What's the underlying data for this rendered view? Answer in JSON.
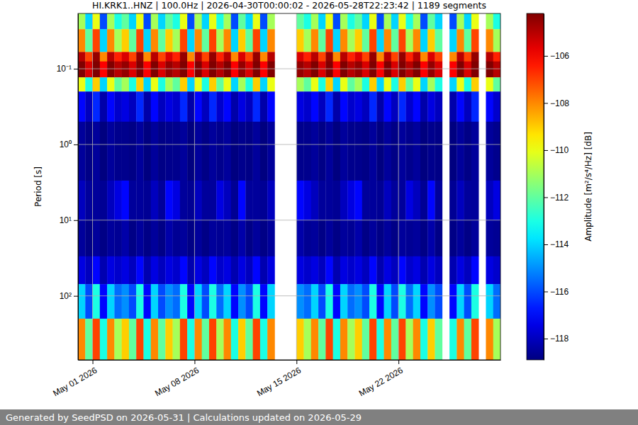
{
  "chart_data": {
    "type": "heatmap",
    "title": "HI.KRK1..HNZ | 100.0Hz | 2026-04-30T00:00:02 - 2026-05-28T22:23:42 | 1189 segments",
    "ylabel": "Period [s]",
    "footer": "Generated by SeedPSD on 2026-05-31 | Calculations updated on 2026-05-29",
    "log": "y",
    "grid": true,
    "xlim": [
      "2026-04-30T00:00",
      "2026-05-29T00:00"
    ],
    "xticks": [
      {
        "value": "2026-05-01T00:00",
        "label": "May 01 2026"
      },
      {
        "value": "2026-05-08T00:00",
        "label": "May 08 2026"
      },
      {
        "value": "2026-05-15T00:00",
        "label": "May 15 2026"
      },
      {
        "value": "2026-05-22T00:00",
        "label": "May 22 2026"
      }
    ],
    "ylim": [
      0.0186,
      700
    ],
    "yticks": [
      {
        "value": 0.1,
        "label": "10⁻¹"
      },
      {
        "value": 1,
        "label": "10⁰"
      },
      {
        "value": 10,
        "label": "10¹"
      },
      {
        "value": 100,
        "label": "10²"
      }
    ],
    "y_bins": [
      0.0186,
      0.03,
      0.06,
      0.08,
      0.13,
      0.2,
      0.5,
      3,
      10,
      30,
      70,
      200,
      700
    ],
    "x": [
      "2026-04-30T00:00",
      "2026-04-30T12:00",
      "2026-05-01T00:00",
      "2026-05-01T12:00",
      "2026-05-02T00:00",
      "2026-05-02T12:00",
      "2026-05-03T00:00",
      "2026-05-03T12:00",
      "2026-05-04T00:00",
      "2026-05-04T12:00",
      "2026-05-05T00:00",
      "2026-05-05T12:00",
      "2026-05-06T00:00",
      "2026-05-06T12:00",
      "2026-05-07T00:00",
      "2026-05-07T12:00",
      "2026-05-08T00:00",
      "2026-05-08T12:00",
      "2026-05-09T00:00",
      "2026-05-09T12:00",
      "2026-05-10T00:00",
      "2026-05-10T12:00",
      "2026-05-11T00:00",
      "2026-05-11T12:00",
      "2026-05-12T00:00",
      "2026-05-12T12:00",
      "2026-05-13T00:00",
      "2026-05-13T12:00",
      "2026-05-14T00:00",
      "2026-05-14T12:00",
      "2026-05-15T00:00",
      "2026-05-15T12:00",
      "2026-05-16T00:00",
      "2026-05-16T12:00",
      "2026-05-17T00:00",
      "2026-05-17T12:00",
      "2026-05-18T00:00",
      "2026-05-18T12:00",
      "2026-05-19T00:00",
      "2026-05-19T12:00",
      "2026-05-20T00:00",
      "2026-05-20T12:00",
      "2026-05-21T00:00",
      "2026-05-21T12:00",
      "2026-05-22T00:00",
      "2026-05-22T12:00",
      "2026-05-23T00:00",
      "2026-05-23T12:00",
      "2026-05-24T00:00",
      "2026-05-24T12:00",
      "2026-05-25T00:00",
      "2026-05-25T12:00",
      "2026-05-26T00:00",
      "2026-05-26T12:00",
      "2026-05-27T00:00",
      "2026-05-27T12:00",
      "2026-05-28T00:00",
      "2026-05-28T12:00"
    ],
    "z": [
      [
        -111,
        -108,
        -105,
        -104,
        -110,
        -117,
        -118.5,
        -118,
        -118.5,
        -117.5,
        -114,
        -108
      ],
      [
        -114,
        -112,
        -107,
        -105.5,
        -113,
        -118,
        -118.8,
        -118.5,
        -118.8,
        -118,
        -116,
        -112
      ],
      [
        -110,
        -107,
        -104.5,
        -104,
        -109,
        -116.5,
        -118.5,
        -118.5,
        -118.5,
        -117,
        -113,
        -107
      ],
      [
        -116,
        -114,
        -108,
        -106,
        -114,
        -118.3,
        -118.9,
        -118.6,
        -118.8,
        -118.2,
        -117,
        -113
      ],
      [
        -111,
        -108,
        -105,
        -104,
        -110,
        -117,
        -118.5,
        -118,
        -118.5,
        -117.5,
        -114,
        -108
      ],
      [
        -113,
        -111,
        -106.5,
        -105,
        -112,
        -117.8,
        -118.7,
        -117.5,
        -118.6,
        -117.8,
        -115.5,
        -111
      ],
      [
        -112,
        -109,
        -105.5,
        -104.5,
        -111,
        -117.5,
        -118.7,
        -117,
        -118.3,
        -117.5,
        -115,
        -109
      ],
      [
        -114,
        -112,
        -107,
        -105.5,
        -113,
        -118,
        -118.8,
        -118.5,
        -118.8,
        -118,
        -116,
        -112
      ],
      [
        -110,
        -107,
        -104.5,
        -104,
        -109,
        -116.5,
        -118.5,
        -118.5,
        -118.5,
        -117,
        -113,
        -107
      ],
      [
        -116,
        -114,
        -108,
        -106,
        -114,
        -118.3,
        -118.9,
        -118.6,
        -118.8,
        -118.2,
        -117,
        -113
      ],
      [
        -111,
        -108,
        -105,
        -104,
        -110,
        -117,
        -118.5,
        -118,
        -118.5,
        -117.5,
        -114,
        -108
      ],
      [
        -114,
        -112,
        -107,
        -105.5,
        -113,
        -118,
        -118.8,
        -118.5,
        -118.8,
        -118,
        -116,
        -112
      ],
      [
        -112,
        -109,
        -105.5,
        -104.5,
        -111,
        -117.5,
        -118.7,
        -117,
        -118.3,
        -117.5,
        -115,
        -109
      ],
      [
        -113,
        -111,
        -106.5,
        -105,
        -112,
        -117.8,
        -118.7,
        -117.5,
        -118.6,
        -117.8,
        -115.5,
        -111
      ],
      [
        -110,
        -107,
        -104.5,
        -104,
        -109,
        -116.5,
        -118.5,
        -118.5,
        -118.5,
        -117,
        -113,
        -107
      ],
      [
        -116,
        -114,
        -108,
        -106,
        -114,
        -118.3,
        -118.9,
        -118.6,
        -118.8,
        -118.2,
        -117,
        -113
      ],
      [
        -111,
        -108,
        -105,
        -104,
        -110,
        -117,
        -118.5,
        -118,
        -118.5,
        -117.5,
        -114,
        -108
      ],
      [
        -114,
        -112,
        -107,
        -105.5,
        -113,
        -118,
        -118.8,
        -118.5,
        -118.8,
        -118,
        -116,
        -112
      ],
      [
        -110,
        -107,
        -104.5,
        -104,
        -109,
        -116.5,
        -118.5,
        -118.5,
        -118.5,
        -117,
        -113,
        -107
      ],
      [
        -113,
        -111,
        -106.5,
        -105,
        -112,
        -117.8,
        -118.7,
        -117.5,
        -118.6,
        -117.8,
        -115.5,
        -111
      ],
      [
        -111,
        -108,
        -105,
        -104,
        -110,
        -117,
        -118.5,
        -118,
        -118.5,
        -117.5,
        -114,
        -108
      ],
      [
        -116,
        -114,
        -108,
        -106,
        -114,
        -118.3,
        -118.9,
        -118.6,
        -118.8,
        -118.2,
        -117,
        -113
      ],
      [
        -112,
        -109,
        -105.5,
        -104.5,
        -111,
        -117.5,
        -118.7,
        -117,
        -118.3,
        -117.5,
        -115,
        -109
      ],
      [
        -114,
        -112,
        -107,
        -105.5,
        -113,
        -118,
        -118.8,
        -118.5,
        -118.8,
        -118,
        -116,
        -112
      ],
      [
        -110,
        -107,
        -104.5,
        -104,
        -109,
        -116.5,
        -118.5,
        -118.5,
        -118.5,
        -117,
        -113,
        -107
      ],
      [
        -116,
        -114,
        -108,
        -106,
        -114,
        -118.3,
        -118.9,
        -118.6,
        -118.8,
        -118.2,
        -117,
        -113
      ],
      [
        -111,
        -108,
        -105,
        -104,
        -110,
        -117,
        -118.5,
        -118,
        -118.5,
        -117.5,
        -114,
        -108
      ],
      null,
      null,
      null,
      [
        -112,
        -109,
        -105.5,
        -104.5,
        -111,
        -117.5,
        -118.7,
        -117,
        -118.3,
        -117.5,
        -115,
        -109
      ],
      [
        -113,
        -111,
        -106.5,
        -105,
        -112,
        -117.8,
        -118.7,
        -117.5,
        -118.6,
        -117.8,
        -115.5,
        -111
      ],
      [
        -111,
        -108,
        -105,
        -104,
        -110,
        -117,
        -118.5,
        -118,
        -118.5,
        -117.5,
        -114,
        -108
      ],
      [
        -114,
        -112,
        -107,
        -105.5,
        -113,
        -118,
        -118.8,
        -118.5,
        -118.8,
        -118,
        -116,
        -112
      ],
      [
        -110,
        -107,
        -104.5,
        -104,
        -109,
        -116.5,
        -118.5,
        -118.5,
        -118.5,
        -117,
        -113,
        -107
      ],
      [
        -116,
        -114,
        -108,
        -106,
        -114,
        -118.3,
        -118.9,
        -118.6,
        -118.8,
        -118.2,
        -117,
        -113
      ],
      [
        -111,
        -108,
        -105,
        -104,
        -110,
        -117,
        -118.5,
        -118,
        -118.5,
        -117.5,
        -114,
        -108
      ],
      [
        -113,
        -111,
        -106.5,
        -105,
        -112,
        -117.8,
        -118.7,
        -117.5,
        -118.6,
        -117.8,
        -115.5,
        -111
      ],
      [
        -112,
        -109,
        -105.5,
        -104.5,
        -111,
        -117.5,
        -118.7,
        -117,
        -118.3,
        -117.5,
        -115,
        -109
      ],
      [
        -114,
        -112,
        -107,
        -105.5,
        -113,
        -118,
        -118.8,
        -118.5,
        -118.8,
        -118,
        -116,
        -112
      ],
      [
        -110,
        -107,
        -104.5,
        -104,
        -109,
        -116.5,
        -118.5,
        -118.5,
        -118.5,
        -117,
        -113,
        -107
      ],
      [
        -116,
        -114,
        -108,
        -106,
        -114,
        -118.3,
        -118.9,
        -118.6,
        -118.8,
        -118.2,
        -117,
        -113
      ],
      [
        -111,
        -108,
        -105,
        -104,
        -110,
        -117,
        -118.5,
        -118,
        -118.5,
        -117.5,
        -114,
        -108
      ],
      [
        -114,
        -112,
        -107,
        -105.5,
        -113,
        -118,
        -118.8,
        -118.5,
        -118.8,
        -118,
        -116,
        -112
      ],
      [
        -110,
        -107,
        -104.5,
        -104,
        -109,
        -116.5,
        -118.5,
        -118.5,
        -118.5,
        -117,
        -113,
        -107
      ],
      [
        -113,
        -111,
        -106.5,
        -105,
        -112,
        -117.8,
        -118.7,
        -117.5,
        -118.6,
        -117.8,
        -115.5,
        -111
      ],
      [
        -111,
        -108,
        -105,
        -104,
        -110,
        -117,
        -118.5,
        -118,
        -118.5,
        -117.5,
        -114,
        -108
      ],
      [
        -116,
        -114,
        -108,
        -106,
        -114,
        -118.3,
        -118.9,
        -118.6,
        -118.8,
        -118.2,
        -117,
        -113
      ],
      [
        -112,
        -109,
        -105.5,
        -104.5,
        -111,
        -117.5,
        -118.7,
        -117,
        -118.3,
        -117.5,
        -115,
        -109
      ],
      [
        -114,
        -112,
        -107,
        -105.5,
        -113,
        -118,
        -118.8,
        -118.5,
        -118.8,
        -118,
        -116,
        -112
      ],
      null,
      [
        -116,
        -114,
        -108,
        -106,
        -114,
        -118.3,
        -118.9,
        -118.6,
        -118.8,
        -118.2,
        -117,
        -113
      ],
      [
        -111,
        -108,
        -105,
        -104,
        -110,
        -117,
        -118.5,
        -118,
        -118.5,
        -117.5,
        -114,
        -108
      ],
      [
        -114,
        -112,
        -107,
        -105.5,
        -113,
        -118,
        -118.8,
        -118.5,
        -118.8,
        -118,
        -116,
        -112
      ],
      [
        -110,
        -107,
        -104.5,
        -104,
        -109,
        -116.5,
        -118.5,
        -118.5,
        -118.5,
        -117,
        -113,
        -107
      ],
      null,
      [
        -111,
        -108,
        -105,
        -104,
        -110,
        -117,
        -118.5,
        -118,
        -118.5,
        -117.5,
        -114,
        -108
      ],
      [
        -113,
        -111,
        -106.5,
        -105,
        -112,
        -117.8,
        -118.7,
        -117.5,
        -118.6,
        -117.8,
        -115.5,
        -111
      ]
    ],
    "colorbar": {
      "label": "Amplitude [m²/s⁴/Hz] [dB]",
      "lim": [
        -118.9,
        -104.2
      ],
      "ticks": [
        {
          "value": -106,
          "label": "−106"
        },
        {
          "value": -108,
          "label": "−108"
        },
        {
          "value": -110,
          "label": "−110"
        },
        {
          "value": -112,
          "label": "−112"
        },
        {
          "value": -114,
          "label": "−114"
        },
        {
          "value": -116,
          "label": "−116"
        },
        {
          "value": -118,
          "label": "−118"
        }
      ]
    }
  }
}
